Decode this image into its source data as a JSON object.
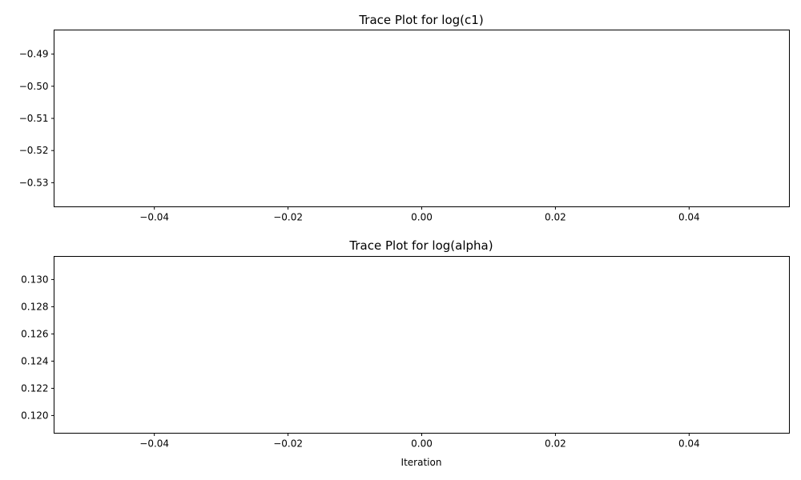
{
  "chart_data": [
    {
      "type": "line",
      "title": "Trace Plot for log(c1)",
      "xlabel": "",
      "ylabel": "",
      "xlim": [
        -0.055,
        0.055
      ],
      "ylim": [
        -0.5375,
        -0.4825
      ],
      "xticks": [
        -0.04,
        -0.02,
        0.0,
        0.02,
        0.04
      ],
      "xtick_labels": [
        "−0.04",
        "−0.02",
        "0.00",
        "0.02",
        "0.04"
      ],
      "yticks": [
        -0.49,
        -0.5,
        -0.51,
        -0.52,
        -0.53
      ],
      "ytick_labels": [
        "−0.49",
        "−0.50",
        "−0.51",
        "−0.52",
        "−0.53"
      ],
      "series": [],
      "grid": false
    },
    {
      "type": "line",
      "title": "Trace Plot for log(alpha)",
      "xlabel": "Iteration",
      "ylabel": "",
      "xlim": [
        -0.055,
        0.055
      ],
      "ylim": [
        0.1187,
        0.1317
      ],
      "xticks": [
        -0.04,
        -0.02,
        0.0,
        0.02,
        0.04
      ],
      "xtick_labels": [
        "−0.04",
        "−0.02",
        "0.00",
        "0.02",
        "0.04"
      ],
      "yticks": [
        0.13,
        0.128,
        0.126,
        0.124,
        0.122,
        0.12
      ],
      "ytick_labels": [
        "0.130",
        "0.128",
        "0.126",
        "0.124",
        "0.122",
        "0.120"
      ],
      "series": [],
      "grid": false
    }
  ]
}
